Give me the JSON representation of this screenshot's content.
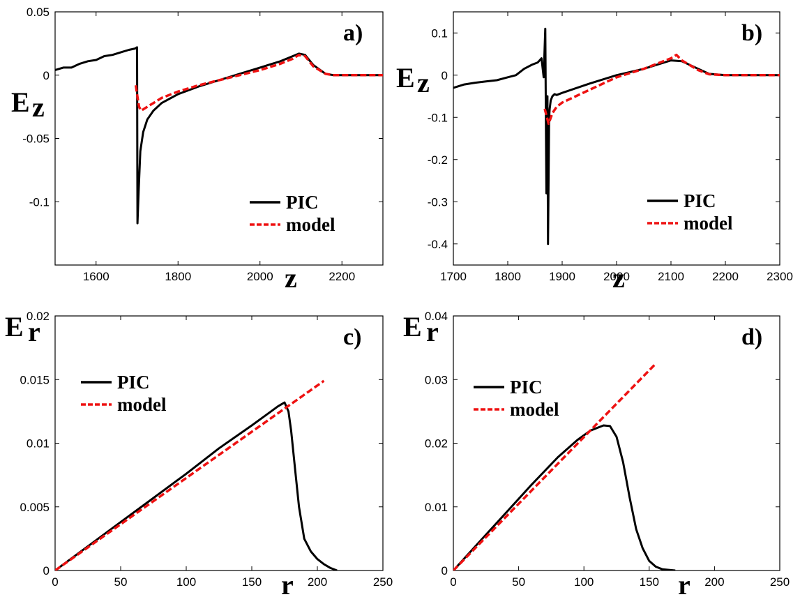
{
  "chart_data": [
    {
      "type": "line",
      "panel_label": "a)",
      "xlabel": "z",
      "ylabel": "E",
      "ylabel_sub": "z",
      "xlim": [
        1500,
        2300
      ],
      "ylim": [
        -0.15,
        0.05
      ],
      "xticks": [
        1600,
        1800,
        2000,
        2200
      ],
      "xtick_labels": [
        "1600",
        "1800",
        "2000",
        "2200"
      ],
      "yticks": [
        -0.1,
        -0.05,
        0,
        0.05
      ],
      "ytick_labels": [
        "-0.1",
        "-0.05",
        "0",
        "0.05"
      ],
      "legend_position": "bottom-right",
      "series": [
        {
          "name": "PIC",
          "color": "#000000",
          "style": "solid",
          "x": [
            1500,
            1520,
            1540,
            1560,
            1580,
            1600,
            1620,
            1640,
            1660,
            1680,
            1695,
            1700,
            1701,
            1704,
            1708,
            1715,
            1725,
            1740,
            1760,
            1800,
            1850,
            1900,
            1950,
            2000,
            2050,
            2080,
            2095,
            2110,
            2130,
            2160,
            2180,
            2200,
            2250,
            2300
          ],
          "y": [
            0.004,
            0.006,
            0.006,
            0.009,
            0.011,
            0.012,
            0.015,
            0.016,
            0.018,
            0.02,
            0.021,
            0.022,
            -0.117,
            -0.09,
            -0.06,
            -0.045,
            -0.035,
            -0.028,
            -0.022,
            -0.015,
            -0.009,
            -0.004,
            0.001,
            0.006,
            0.011,
            0.015,
            0.017,
            0.016,
            0.008,
            0.001,
            0.0,
            0.0,
            0.0,
            0.0
          ]
        },
        {
          "name": "model",
          "color": "#ee1111",
          "style": "dashed",
          "x": [
            1697,
            1700,
            1705,
            1710,
            1715,
            1725,
            1740,
            1760,
            1800,
            1850,
            1900,
            1950,
            2000,
            2050,
            2080,
            2095,
            2110,
            2130,
            2160,
            2180,
            2200,
            2250,
            2300
          ],
          "y": [
            -0.008,
            -0.015,
            -0.025,
            -0.028,
            -0.027,
            -0.025,
            -0.022,
            -0.018,
            -0.013,
            -0.008,
            -0.004,
            0.0,
            0.004,
            0.009,
            0.013,
            0.016,
            0.015,
            0.007,
            0.001,
            0.0,
            0.0,
            0.0,
            0.0
          ]
        }
      ]
    },
    {
      "type": "line",
      "panel_label": "b)",
      "xlabel": "z",
      "ylabel": "E",
      "ylabel_sub": "z",
      "xlim": [
        1700,
        2300
      ],
      "ylim": [
        -0.45,
        0.15
      ],
      "xticks": [
        1700,
        1800,
        1900,
        2000,
        2100,
        2200,
        2300
      ],
      "xtick_labels": [
        "1700",
        "1800",
        "1900",
        "2000",
        "2100",
        "2200",
        "2300"
      ],
      "yticks": [
        -0.4,
        -0.3,
        -0.2,
        -0.1,
        0,
        0.1
      ],
      "ytick_labels": [
        "-0.4",
        "-0.3",
        "-0.2",
        "-0.1",
        "0",
        "0.1"
      ],
      "legend_position": "bottom-right",
      "series": [
        {
          "name": "PIC",
          "color": "#000000",
          "style": "solid",
          "x": [
            1700,
            1720,
            1740,
            1760,
            1780,
            1800,
            1815,
            1830,
            1845,
            1855,
            1862,
            1866,
            1869,
            1871,
            1873,
            1874,
            1875,
            1876,
            1877,
            1879,
            1882,
            1886,
            1890,
            1900,
            1950,
            2000,
            2050,
            2100,
            2120,
            2150,
            2170,
            2200,
            2250,
            2300
          ],
          "y": [
            -0.03,
            -0.022,
            -0.018,
            -0.015,
            -0.012,
            -0.005,
            0.0,
            0.015,
            0.025,
            0.03,
            0.04,
            -0.005,
            0.11,
            -0.28,
            -0.05,
            -0.4,
            -0.25,
            -0.1,
            -0.08,
            -0.06,
            -0.05,
            -0.045,
            -0.047,
            -0.042,
            -0.02,
            0.0,
            0.015,
            0.035,
            0.033,
            0.015,
            0.003,
            0.0,
            0.0,
            0.0
          ]
        },
        {
          "name": "model",
          "color": "#ee1111",
          "style": "dashed",
          "x": [
            1868,
            1872,
            1875,
            1878,
            1882,
            1890,
            1900,
            1950,
            2000,
            2050,
            2100,
            2110,
            2120,
            2150,
            2170,
            2200,
            2250,
            2300
          ],
          "y": [
            -0.08,
            -0.1,
            -0.115,
            -0.105,
            -0.09,
            -0.075,
            -0.065,
            -0.035,
            -0.005,
            0.015,
            0.04,
            0.048,
            0.035,
            0.012,
            0.002,
            0.0,
            0.0,
            0.0
          ]
        }
      ]
    },
    {
      "type": "line",
      "panel_label": "c)",
      "xlabel": "r",
      "ylabel": "E",
      "ylabel_sub": "r",
      "xlim": [
        0,
        250
      ],
      "ylim": [
        0,
        0.02
      ],
      "xticks": [
        0,
        50,
        100,
        150,
        200,
        250
      ],
      "xtick_labels": [
        "0",
        "50",
        "100",
        "150",
        "200",
        "250"
      ],
      "yticks": [
        0,
        0.005,
        0.01,
        0.015,
        0.02
      ],
      "ytick_labels": [
        "0",
        "0.005",
        "0.01",
        "0.015",
        "0.02"
      ],
      "legend_position": "top-left",
      "series": [
        {
          "name": "PIC",
          "color": "#000000",
          "style": "solid",
          "x": [
            0,
            25,
            50,
            75,
            100,
            125,
            150,
            170,
            175,
            178,
            180,
            183,
            186,
            190,
            195,
            200,
            205,
            210,
            215
          ],
          "y": [
            0,
            0.0019,
            0.0038,
            0.0057,
            0.0076,
            0.0096,
            0.0114,
            0.0129,
            0.0132,
            0.0125,
            0.011,
            0.008,
            0.005,
            0.0025,
            0.0015,
            0.0009,
            0.0005,
            0.0002,
            0.0
          ]
        },
        {
          "name": "model",
          "color": "#ee1111",
          "style": "dashed",
          "x": [
            0,
            205
          ],
          "y": [
            0,
            0.0149
          ]
        }
      ]
    },
    {
      "type": "line",
      "panel_label": "d)",
      "xlabel": "r",
      "ylabel": "E",
      "ylabel_sub": "r",
      "xlim": [
        0,
        250
      ],
      "ylim": [
        0,
        0.04
      ],
      "xticks": [
        0,
        50,
        100,
        150,
        200,
        250
      ],
      "xtick_labels": [
        "0",
        "50",
        "100",
        "150",
        "200",
        "250"
      ],
      "yticks": [
        0,
        0.01,
        0.02,
        0.03,
        0.04
      ],
      "ytick_labels": [
        "0",
        "0.01",
        "0.02",
        "0.03",
        "0.04"
      ],
      "legend_position": "top-left",
      "series": [
        {
          "name": "PIC",
          "color": "#000000",
          "style": "solid",
          "x": [
            0,
            20,
            40,
            60,
            80,
            95,
            105,
            115,
            120,
            125,
            130,
            135,
            140,
            145,
            150,
            155,
            160,
            170
          ],
          "y": [
            0,
            0.0045,
            0.009,
            0.0135,
            0.0178,
            0.0205,
            0.022,
            0.0228,
            0.0227,
            0.021,
            0.017,
            0.0115,
            0.0065,
            0.0035,
            0.0015,
            0.0006,
            0.0002,
            0.0
          ]
        },
        {
          "name": "model",
          "color": "#ee1111",
          "style": "dashed",
          "x": [
            0,
            155
          ],
          "y": [
            0,
            0.0325
          ]
        }
      ]
    }
  ]
}
